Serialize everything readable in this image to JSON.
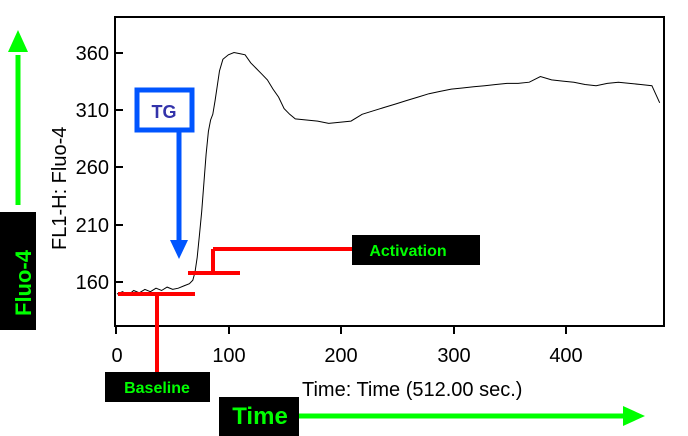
{
  "chart_data": {
    "type": "line",
    "ylabel": "FL1-H: Fluo-4",
    "xlabel": "Time: Time (512.00 sec.)",
    "xlim": [
      0,
      490
    ],
    "ylim": [
      115,
      385
    ],
    "x_ticks": [
      0,
      100,
      200,
      300,
      400
    ],
    "y_ticks": [
      160,
      210,
      260,
      310,
      360
    ],
    "grid": false,
    "series": [
      {
        "color": "#000000",
        "points": [
          [
            0,
            143
          ],
          [
            5,
            145
          ],
          [
            10,
            142
          ],
          [
            15,
            146
          ],
          [
            20,
            144
          ],
          [
            25,
            147
          ],
          [
            30,
            145
          ],
          [
            35,
            148
          ],
          [
            40,
            146
          ],
          [
            45,
            149
          ],
          [
            50,
            147
          ],
          [
            55,
            148
          ],
          [
            60,
            150
          ],
          [
            65,
            152
          ],
          [
            68,
            155
          ],
          [
            70,
            162
          ],
          [
            72,
            175
          ],
          [
            74,
            195
          ],
          [
            76,
            215
          ],
          [
            78,
            240
          ],
          [
            80,
            265
          ],
          [
            82,
            285
          ],
          [
            84,
            295
          ],
          [
            86,
            300
          ],
          [
            88,
            312
          ],
          [
            90,
            325
          ],
          [
            92,
            338
          ],
          [
            95,
            348
          ],
          [
            100,
            352
          ],
          [
            105,
            354
          ],
          [
            110,
            353
          ],
          [
            115,
            352
          ],
          [
            120,
            345
          ],
          [
            125,
            340
          ],
          [
            130,
            335
          ],
          [
            135,
            330
          ],
          [
            140,
            322
          ],
          [
            145,
            315
          ],
          [
            150,
            305
          ],
          [
            155,
            300
          ],
          [
            160,
            296
          ],
          [
            170,
            295
          ],
          [
            180,
            294
          ],
          [
            190,
            292
          ],
          [
            200,
            293
          ],
          [
            210,
            294
          ],
          [
            220,
            300
          ],
          [
            230,
            303
          ],
          [
            240,
            306
          ],
          [
            250,
            309
          ],
          [
            260,
            312
          ],
          [
            270,
            315
          ],
          [
            280,
            318
          ],
          [
            290,
            320
          ],
          [
            300,
            322
          ],
          [
            310,
            323
          ],
          [
            320,
            324
          ],
          [
            330,
            325
          ],
          [
            340,
            326
          ],
          [
            350,
            327
          ],
          [
            360,
            327
          ],
          [
            370,
            328
          ],
          [
            380,
            333
          ],
          [
            390,
            330
          ],
          [
            400,
            329
          ],
          [
            410,
            328
          ],
          [
            420,
            326
          ],
          [
            430,
            325
          ],
          [
            440,
            327
          ],
          [
            450,
            328
          ],
          [
            460,
            327
          ],
          [
            470,
            326
          ],
          [
            480,
            325
          ],
          [
            487,
            310
          ]
        ]
      }
    ]
  },
  "labels": {
    "tg": "TG",
    "activation": "Activation",
    "baseline": "Baseline",
    "fluo4": "Fluo-4",
    "time": "Time"
  },
  "colors": {
    "red": "#ff0000",
    "green": "#00ff00",
    "blue": "#0055ff",
    "tg_text": "#3333aa",
    "label_box": "#000000"
  }
}
